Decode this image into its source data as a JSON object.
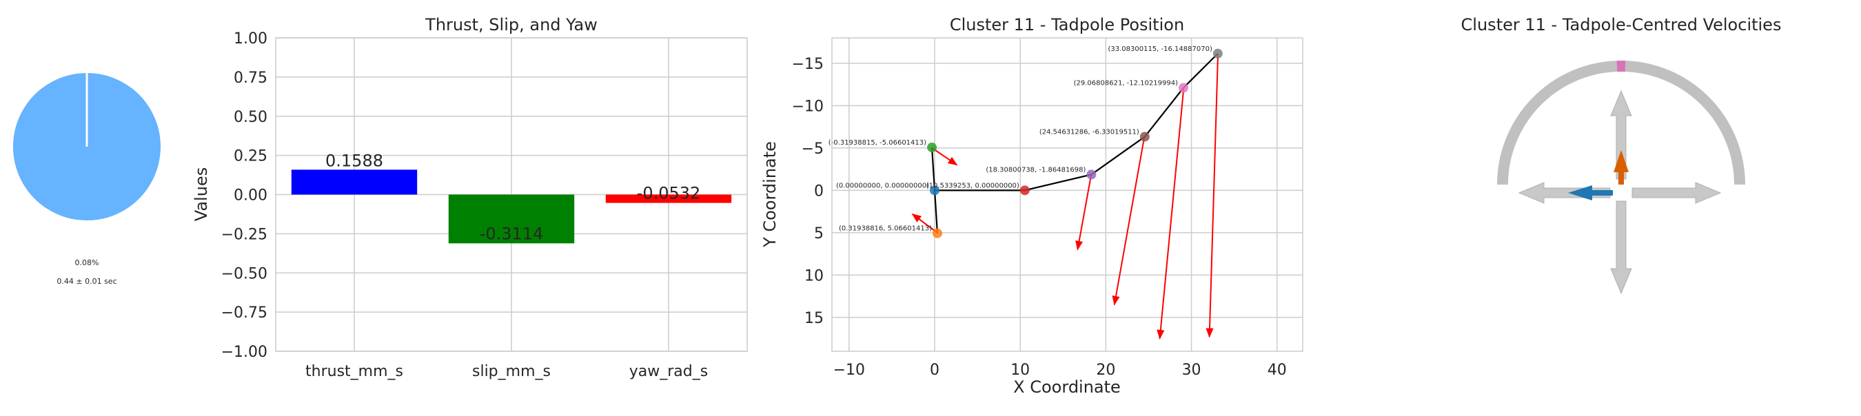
{
  "chart_data": [
    {
      "type": "pie",
      "slices": [
        {
          "label": "",
          "value": 0.08,
          "color": "#ffffff"
        },
        {
          "label": "",
          "value": 99.92,
          "color": "#66b3ff"
        }
      ],
      "pct_label": "0.08%",
      "time_label": "0.44 ± 0.01 sec"
    },
    {
      "type": "bar",
      "title": "Thrust, Slip, and Yaw",
      "xlabel": "",
      "ylabel": "Values",
      "categories": [
        "thrust_mm_s",
        "slip_mm_s",
        "yaw_rad_s"
      ],
      "values": [
        0.1588,
        -0.3114,
        -0.0532
      ],
      "value_labels": [
        "0.1588",
        "-0.3114",
        "-0.0532"
      ],
      "colors": [
        "#0000ff",
        "#008000",
        "#ff0000"
      ],
      "ylim": [
        -1.0,
        1.0
      ],
      "yticks": [
        "1.00",
        "0.75",
        "0.50",
        "0.25",
        "0.00",
        "−0.25",
        "−0.50",
        "−0.75",
        "−1.00"
      ],
      "grid": true
    },
    {
      "type": "scatter",
      "title": "Cluster 11 - Tadpole Position",
      "xlabel": "X Coordinate",
      "ylabel": "Y Coordinate",
      "xlim": [
        -12,
        43
      ],
      "ylim": [
        19,
        -18
      ],
      "xticks": [
        "−10",
        "0",
        "10",
        "20",
        "30",
        "40"
      ],
      "yticks": [
        "−15",
        "−10",
        "−5",
        "0",
        "5",
        "10",
        "15"
      ],
      "grid": true,
      "points": [
        {
          "x": -0.31938815,
          "y": -5.06601413,
          "color": "#2ca02c",
          "label": "(-0.31938815, -5.06601413)"
        },
        {
          "x": 0.0,
          "y": 0.0,
          "color": "#1f77b4",
          "label": "(0.00000000, 0.00000000)"
        },
        {
          "x": 0.31938816,
          "y": 5.06601413,
          "color": "#ff7f0e",
          "label": "(0.31938816, 5.06601413)"
        },
        {
          "x": 10.5339253,
          "y": 0.0,
          "color": "#d62728",
          "label": "(10.5339253, 0.00000000)"
        },
        {
          "x": 18.30800738,
          "y": -1.86481698,
          "color": "#9467bd",
          "label": "(18.30800738, -1.86481698)"
        },
        {
          "x": 24.54631286,
          "y": -6.33019511,
          "color": "#8c564b",
          "label": "(24.54631286, -6.33019511)"
        },
        {
          "x": 29.06808621,
          "y": -12.10219994,
          "color": "#e377c2",
          "label": "(29.06808621, -12.10219994)"
        },
        {
          "x": 33.08300115,
          "y": -16.1488707,
          "color": "#7f7f7f",
          "label": "(33.08300115, -16.14887070)"
        }
      ],
      "path_order": [
        0,
        1,
        2,
        1,
        3,
        4,
        5,
        6,
        7
      ],
      "vectors": [
        {
          "x0": -0.3,
          "y0": -5.0,
          "x1": 2.6,
          "y1": -3.0
        },
        {
          "x0": 0.3,
          "y0": 5.0,
          "x1": -2.6,
          "y1": 2.8
        },
        {
          "x0": 18.3,
          "y0": -1.9,
          "x1": 16.7,
          "y1": 7.0
        },
        {
          "x0": 24.5,
          "y0": -6.3,
          "x1": 21.0,
          "y1": 13.5
        },
        {
          "x0": 29.1,
          "y0": -12.1,
          "x1": 26.3,
          "y1": 17.5
        },
        {
          "x0": 33.1,
          "y0": -16.1,
          "x1": 32.1,
          "y1": 17.3
        }
      ]
    },
    {
      "type": "other",
      "title": "Cluster 11 - Tadpole-Centred Velocities",
      "arc_marker_angle_deg": 90,
      "thrust_value": 0.1588,
      "slip_value": -0.3114,
      "thrust_color": "#d95f02",
      "slip_color": "#1f77b4",
      "marker_color": "#d973b8"
    }
  ]
}
